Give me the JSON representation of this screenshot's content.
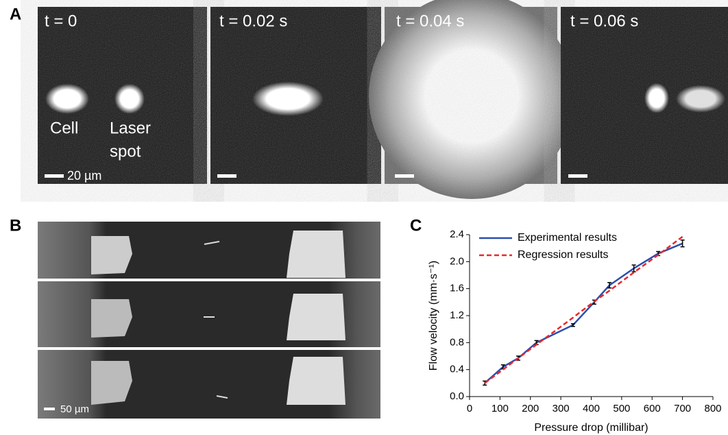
{
  "panel_a": {
    "letter": "A",
    "frames": [
      "t = 0",
      "t = 0.02 s",
      "t = 0.04 s",
      "t = 0.06 s"
    ],
    "cell_label": "Cell",
    "laser_label": [
      "Laser",
      "spot"
    ],
    "scale_label": "20 µm"
  },
  "panel_b": {
    "letter": "B",
    "scale_label": "50 µm"
  },
  "panel_c": {
    "letter": "C"
  },
  "chart_data": {
    "type": "line",
    "x_label": "Pressure drop (millibar)",
    "y_label": "Flow velocity (mm·s⁻¹)",
    "x": [
      50,
      110,
      160,
      220,
      340,
      410,
      460,
      540,
      620,
      700
    ],
    "series": [
      {
        "name": "Experimental results",
        "color": "#2a4fb0",
        "dash": false,
        "values": [
          0.2,
          0.44,
          0.57,
          0.8,
          1.06,
          1.4,
          1.65,
          1.9,
          2.12,
          2.27
        ],
        "errors": [
          0.03,
          0.03,
          0.03,
          0.03,
          0.02,
          0.03,
          0.04,
          0.05,
          0.03,
          0.05
        ]
      },
      {
        "name": "Regression results",
        "color": "#e8282b",
        "dash": true,
        "values": [
          0.2,
          0.4,
          0.57,
          0.77,
          1.17,
          1.41,
          1.57,
          1.84,
          2.1,
          2.37
        ]
      }
    ],
    "xlim": [
      0,
      800
    ],
    "xticks": [
      0,
      100,
      200,
      300,
      400,
      500,
      600,
      700,
      800
    ],
    "ylim": [
      0,
      2.4
    ],
    "yticks": [
      {
        "value": 0,
        "label": "0.0"
      },
      0.4,
      0.8,
      1.2,
      1.6,
      {
        "value": 2,
        "label": "2.0"
      },
      2.4
    ],
    "legend": "top-left"
  }
}
